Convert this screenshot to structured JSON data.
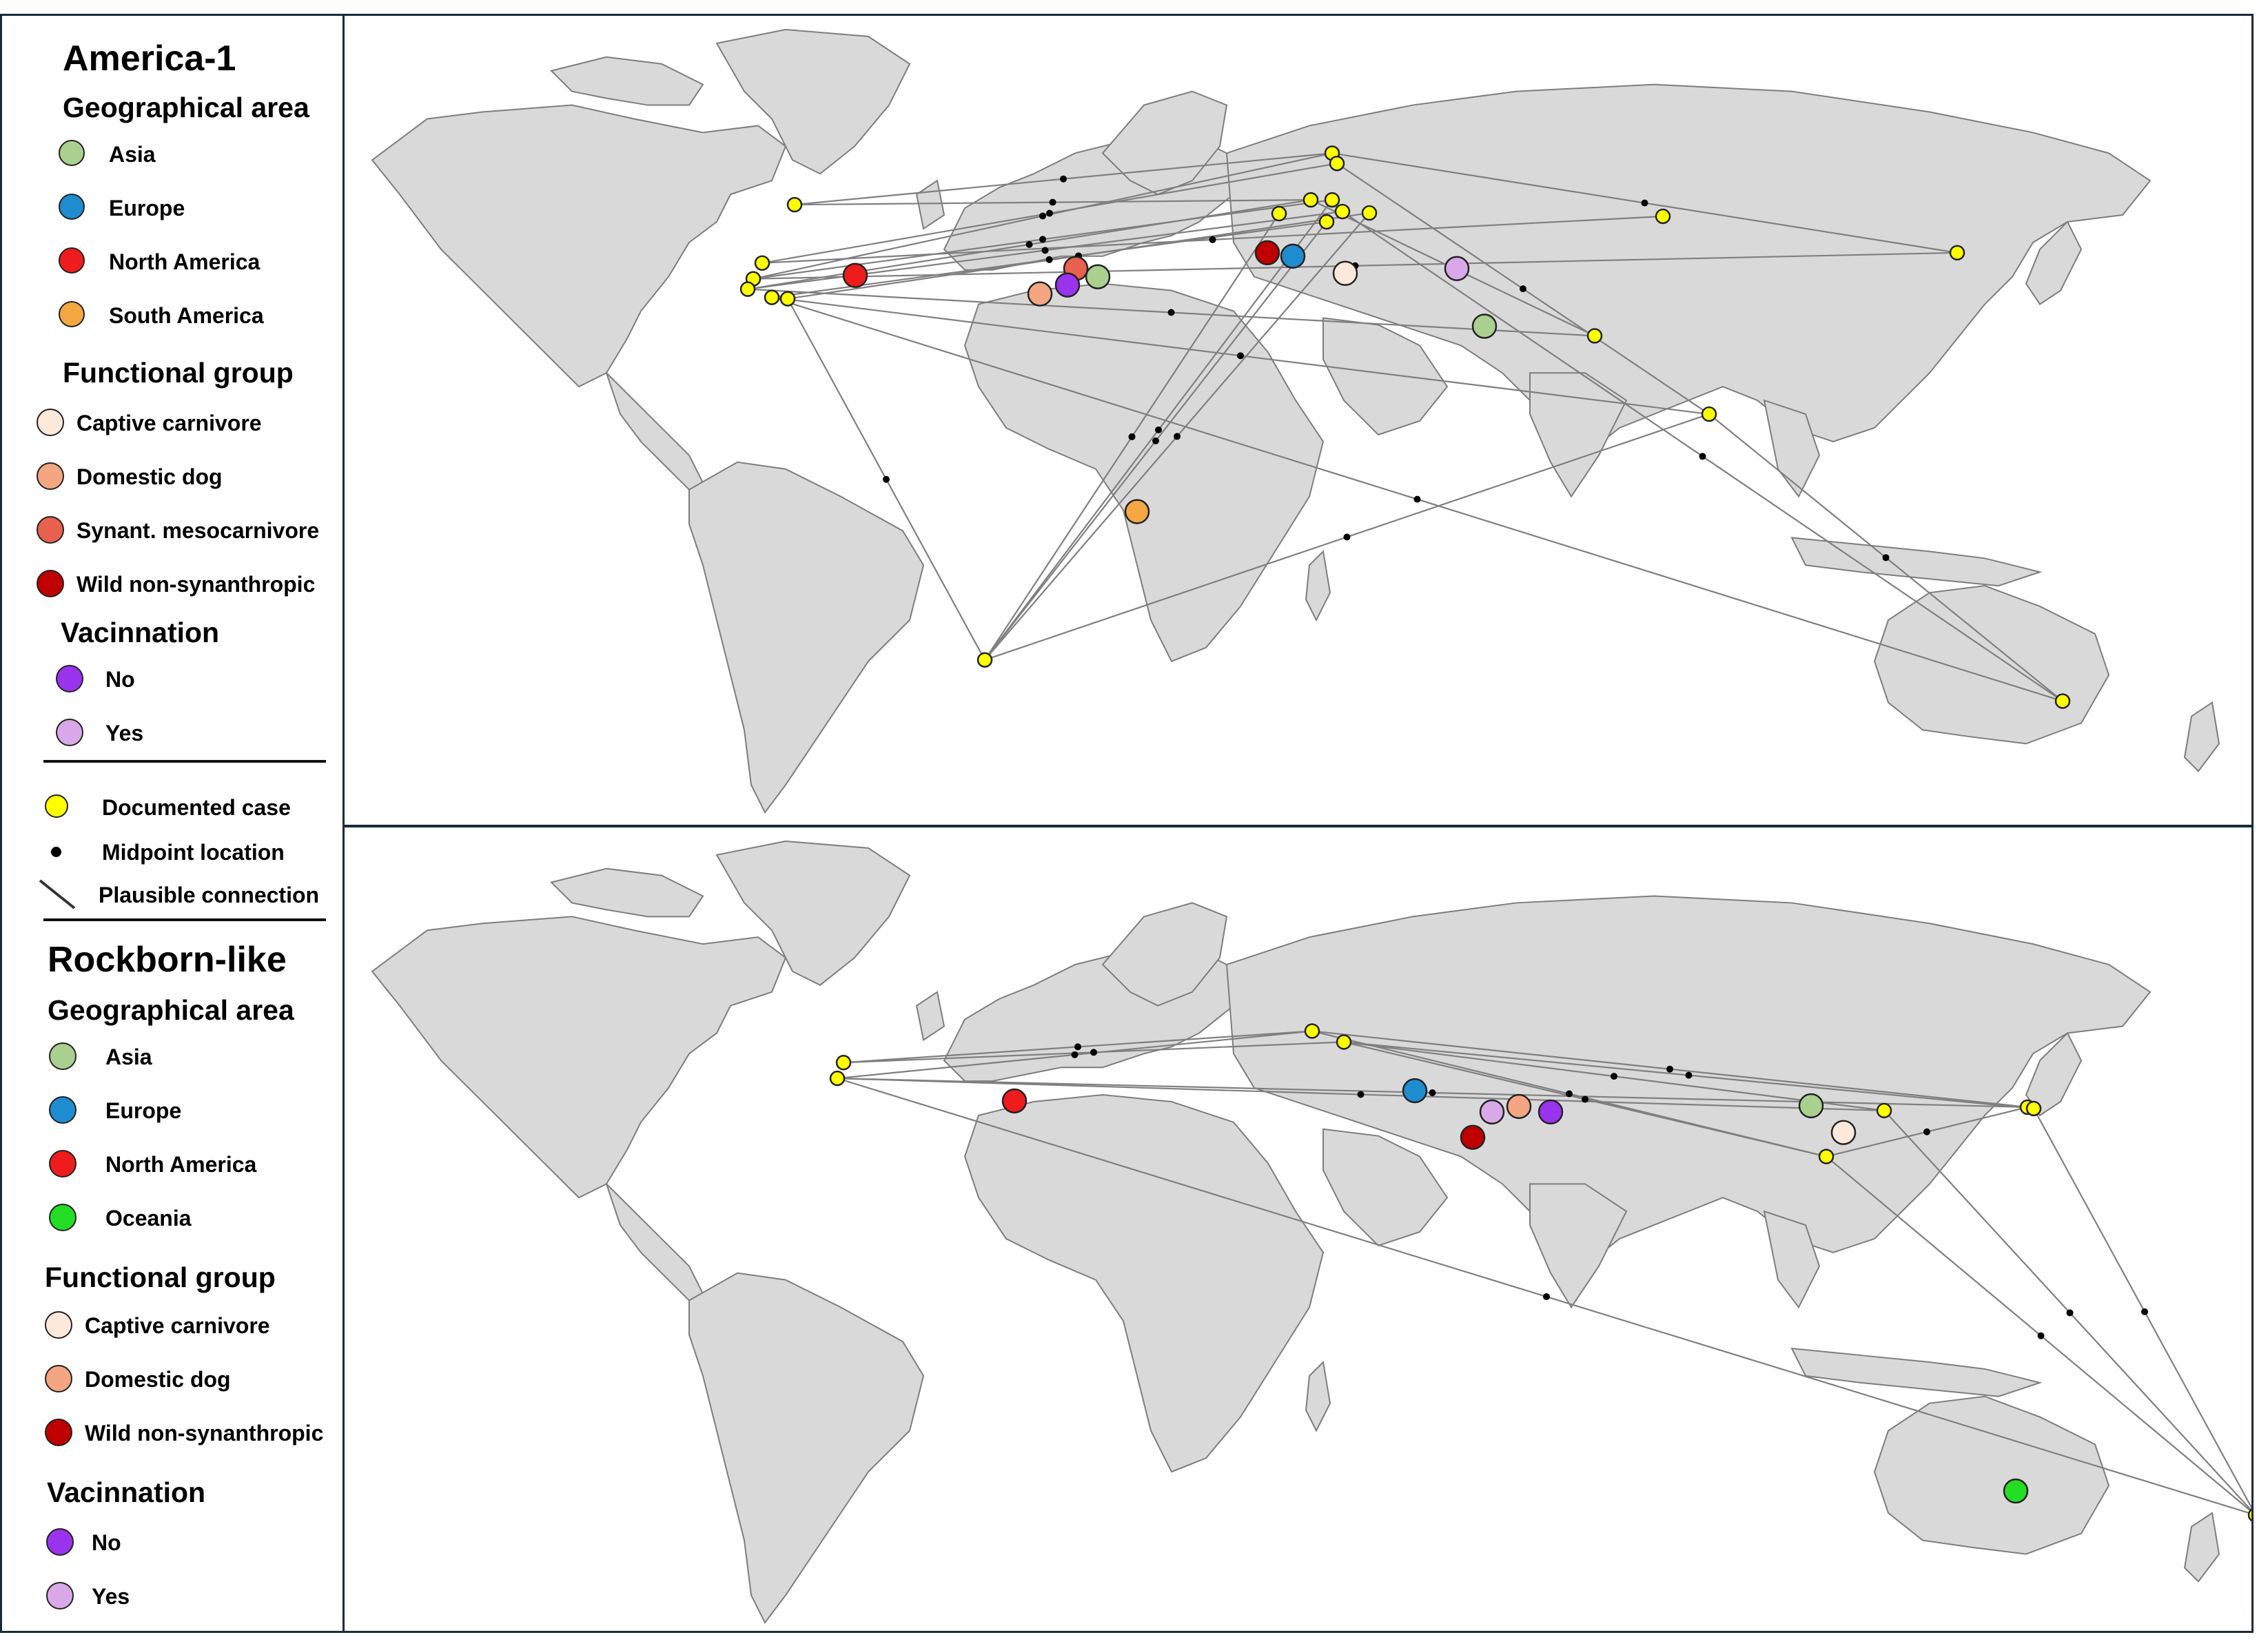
{
  "legend": {
    "panel1": {
      "title": "America-1",
      "geo_header": "Geographical area",
      "geo": [
        {
          "label": "Asia",
          "color": "#a9d08e"
        },
        {
          "label": "Europe",
          "color": "#1f8ccf"
        },
        {
          "label": "North America",
          "color": "#ee1c1c"
        },
        {
          "label": "South America",
          "color": "#f5a742"
        }
      ],
      "func_header": "Functional group",
      "func": [
        {
          "label": "Captive carnivore",
          "color": "#fde9d9"
        },
        {
          "label": "Domestic dog",
          "color": "#f4a582"
        },
        {
          "label": "Synant. mesocarnivore",
          "color": "#e8614f"
        },
        {
          "label": "Wild non-synanthropic",
          "color": "#c00000"
        }
      ],
      "vac_header": "Vacinnation",
      "vac": [
        {
          "label": "No",
          "color": "#9933ee"
        },
        {
          "label": "Yes",
          "color": "#d9a8e8"
        }
      ]
    },
    "common": {
      "documented": {
        "label": "Documented case",
        "color": "#ffff00"
      },
      "midpoint": {
        "label": "Midpoint location"
      },
      "connection": {
        "label": "Plausible connection"
      }
    },
    "panel2": {
      "title": "Rockborn-like",
      "geo_header": "Geographical area",
      "geo": [
        {
          "label": "Asia",
          "color": "#a9d08e"
        },
        {
          "label": "Europe",
          "color": "#1f8ccf"
        },
        {
          "label": "North America",
          "color": "#ee1c1c"
        },
        {
          "label": "Oceania",
          "color": "#22dd22"
        }
      ],
      "func_header": "Functional group",
      "func": [
        {
          "label": "Captive carnivore",
          "color": "#fde9d9"
        },
        {
          "label": "Domestic dog",
          "color": "#f4a582"
        },
        {
          "label": "Wild non-synanthropic",
          "color": "#c00000"
        }
      ],
      "vac_header": "Vacinnation",
      "vac": [
        {
          "label": "No",
          "color": "#9933ee"
        },
        {
          "label": "Yes",
          "color": "#d9a8e8"
        }
      ]
    }
  },
  "maps": {
    "america1": {
      "colors": {
        "Asia": "#a9d08e",
        "Europe": "#1f8ccf",
        "North America": "#ee1c1c",
        "South America": "#f5a742",
        "Captive carnivore": "#fde9d9",
        "Domestic dog": "#f4a582",
        "Synant. mesocarnivore": "#e8614f",
        "Wild non-synanthropic": "#c00000",
        "No": "#9933ee",
        "Yes": "#d9a8e8"
      }
    },
    "rockborn": {
      "colors": {
        "Asia": "#a9d08e",
        "Europe": "#1f8ccf",
        "North America": "#ee1c1c",
        "Oceania": "#22dd22",
        "Captive carnivore": "#fde9d9",
        "Domestic dog": "#f4a582",
        "Wild non-synanthropic": "#c00000",
        "No": "#9933ee",
        "Yes": "#d9a8e8"
      }
    }
  }
}
